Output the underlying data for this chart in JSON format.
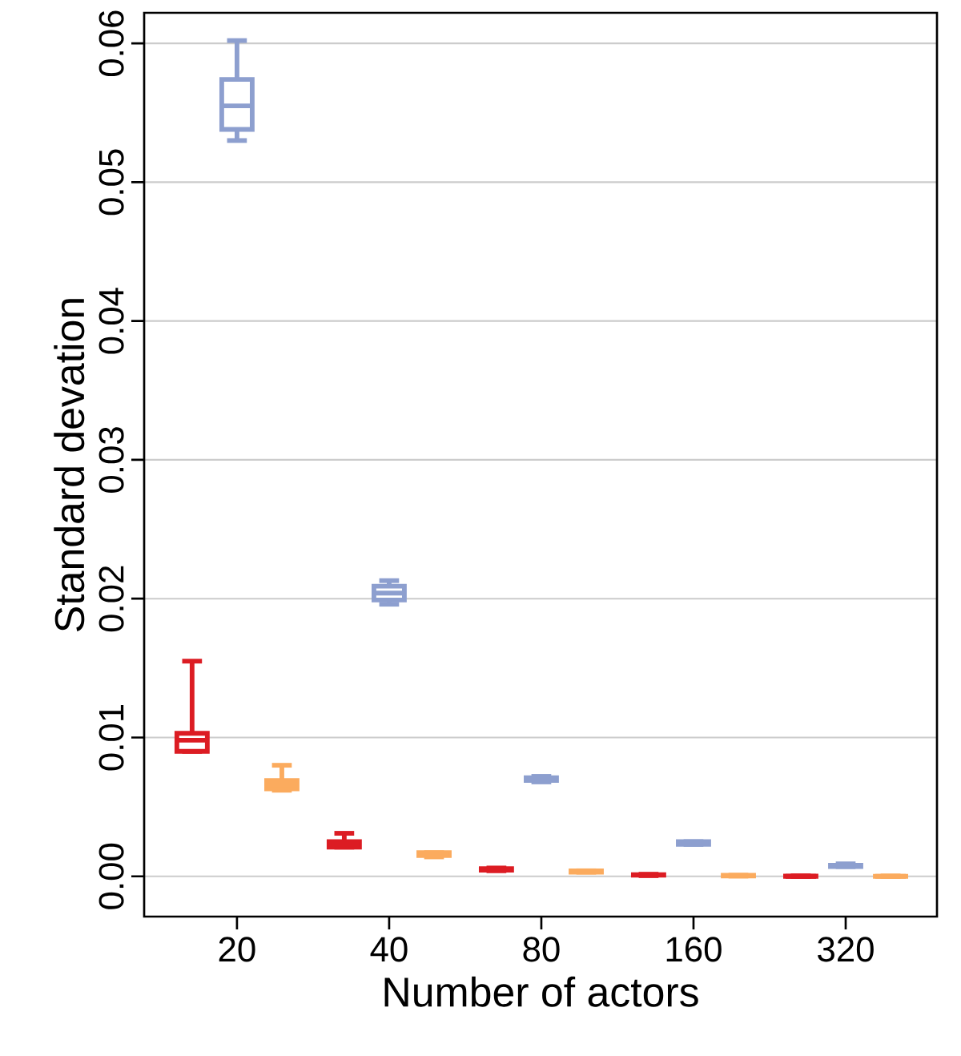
{
  "chart_data": {
    "type": "box",
    "xlabel": "Number of actors",
    "ylabel": "Standard devation",
    "categories": [
      "20",
      "40",
      "80",
      "160",
      "320"
    ],
    "ylim": [
      -0.0029,
      0.0622
    ],
    "yticks": [
      {
        "value": 0,
        "label": "0.00"
      },
      {
        "value": 0.01,
        "label": "0.01"
      },
      {
        "value": 0.02,
        "label": "0.02"
      },
      {
        "value": 0.03,
        "label": "0.03"
      },
      {
        "value": 0.04,
        "label": "0.04"
      },
      {
        "value": 0.05,
        "label": "0.05"
      },
      {
        "value": 0.06,
        "label": "0.06"
      }
    ],
    "grid": "y",
    "series": [
      {
        "color": "#dc1c23",
        "boxes": [
          {
            "low": 0.009,
            "q1": 0.009,
            "median": 0.0098,
            "q3": 0.0103,
            "high": 0.0155
          },
          {
            "low": 0.0021,
            "q1": 0.0021,
            "median": 0.0023,
            "q3": 0.0025,
            "high": 0.0031
          },
          {
            "low": 0.0004,
            "q1": 0.00045,
            "median": 0.0005,
            "q3": 0.00055,
            "high": 0.0006
          },
          {
            "low": 5e-05,
            "q1": 8e-05,
            "median": 0.0001,
            "q3": 0.00012,
            "high": 0.00015
          },
          {
            "low": 0.0,
            "q1": 0.0,
            "median": 0.0,
            "q3": 2e-05,
            "high": 3e-05
          }
        ]
      },
      {
        "color": "#8d9fcf",
        "boxes": [
          {
            "low": 0.053,
            "q1": 0.0538,
            "median": 0.0555,
            "q3": 0.0574,
            "high": 0.0602
          },
          {
            "low": 0.0196,
            "q1": 0.0199,
            "median": 0.0204,
            "q3": 0.0209,
            "high": 0.0213
          },
          {
            "low": 0.0068,
            "q1": 0.0069,
            "median": 0.007,
            "q3": 0.0071,
            "high": 0.0072
          },
          {
            "low": 0.0023,
            "q1": 0.0023,
            "median": 0.0024,
            "q3": 0.0025,
            "high": 0.0025
          },
          {
            "low": 0.0007,
            "q1": 0.0007,
            "median": 0.0008,
            "q3": 0.0008,
            "high": 0.0009
          }
        ]
      },
      {
        "color": "#fbab5e",
        "boxes": [
          {
            "low": 0.0062,
            "q1": 0.0063,
            "median": 0.0066,
            "q3": 0.0069,
            "high": 0.008
          },
          {
            "low": 0.0014,
            "q1": 0.0015,
            "median": 0.0016,
            "q3": 0.0017,
            "high": 0.0017
          },
          {
            "low": 0.0003,
            "q1": 0.0003,
            "median": 0.00035,
            "q3": 0.0004,
            "high": 0.0004
          },
          {
            "low": 2e-05,
            "q1": 3e-05,
            "median": 5e-05,
            "q3": 7e-05,
            "high": 8e-05
          },
          {
            "low": 0.0,
            "q1": 0.0,
            "median": 0.0,
            "q3": 1e-05,
            "high": 2e-05
          }
        ]
      }
    ]
  }
}
